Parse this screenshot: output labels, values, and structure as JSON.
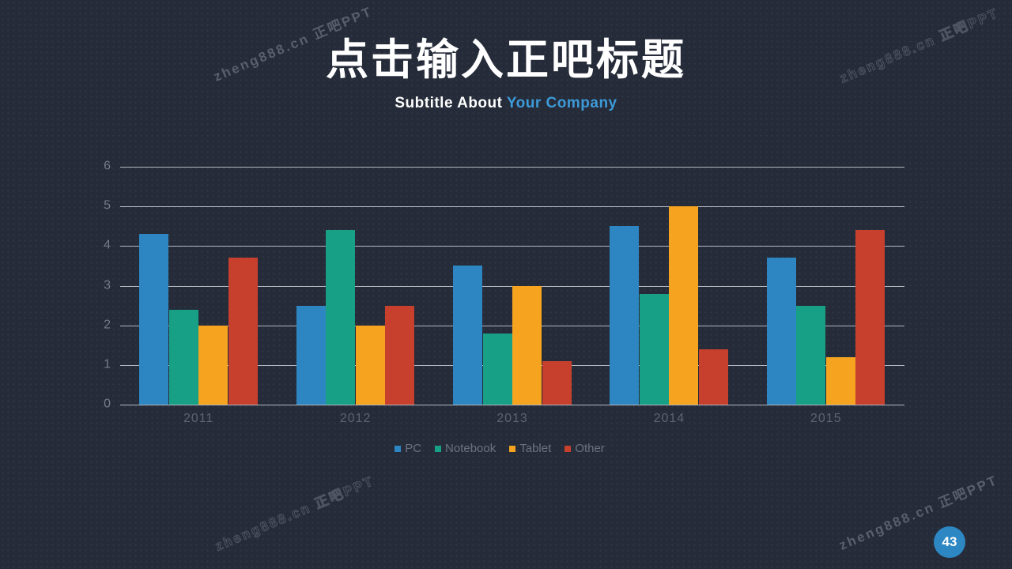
{
  "slide": {
    "title": "点击输入正吧标题",
    "subtitle": {
      "prefix": "Subtitle About ",
      "accent": "Your Company"
    },
    "page_number": "43"
  },
  "watermark": {
    "text": "zheng888.cn 正吧PPT"
  },
  "theme": {
    "background": "#252b38",
    "accent_blue": "#3d9ad8",
    "grid_color": "rgba(219,224,232,0.78)",
    "axis_label_color": "#747c8a",
    "category_label_color": "#5c6472",
    "legend_label_color": "#6b7380",
    "page_badge_color": "#2d87c3"
  },
  "chart_data": {
    "type": "bar",
    "title": "",
    "xlabel": "",
    "ylabel": "",
    "categories": [
      "2011",
      "2012",
      "2013",
      "2014",
      "2015"
    ],
    "series": [
      {
        "name": "PC",
        "color": "#2d86c2",
        "values": [
          4.3,
          2.5,
          3.5,
          4.5,
          3.7
        ]
      },
      {
        "name": "Notebook",
        "color": "#17a086",
        "values": [
          2.4,
          4.4,
          1.8,
          2.8,
          2.5
        ]
      },
      {
        "name": "Tablet",
        "color": "#f6a41f",
        "values": [
          2.0,
          2.0,
          3.0,
          5.0,
          1.2
        ]
      },
      {
        "name": "Other",
        "color": "#c7402e",
        "values": [
          3.7,
          2.5,
          1.1,
          1.4,
          4.4
        ]
      }
    ],
    "ylim": [
      0,
      6
    ],
    "ytick_step": 1,
    "grid": true,
    "legend_position": "bottom"
  }
}
